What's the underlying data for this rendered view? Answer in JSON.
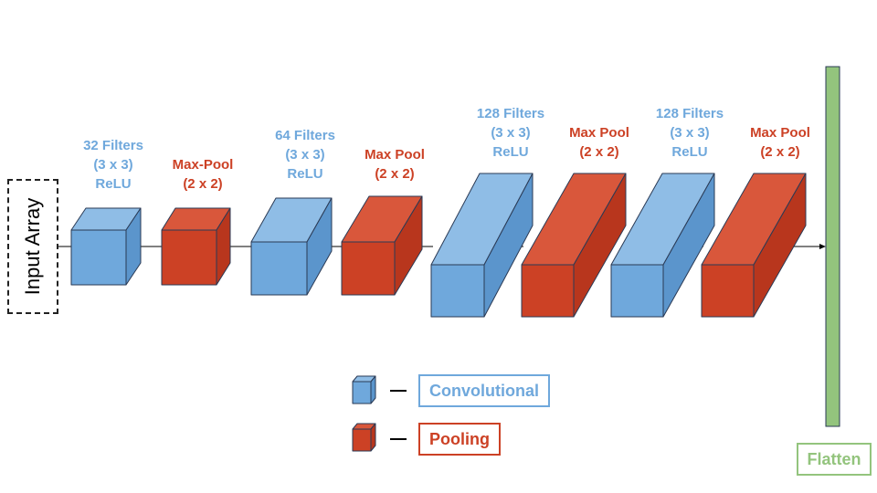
{
  "input": {
    "label": "Input Array"
  },
  "colors": {
    "conv_front": "#6fa8dc",
    "conv_top": "#8fbde6",
    "conv_side": "#5b95cc",
    "pool_front": "#cc4125",
    "pool_top": "#d9573b",
    "pool_side": "#b8361d",
    "flatten": "#93c47d",
    "stroke": "#2a3a55"
  },
  "layers": [
    {
      "type": "conv",
      "lines": [
        "32 Filters",
        "(3 x 3)",
        "ReLU"
      ]
    },
    {
      "type": "pool",
      "lines": [
        "Max-Pool",
        "(2 x 2)"
      ]
    },
    {
      "type": "conv",
      "lines": [
        "64 Filters",
        "(3 x 3)",
        "ReLU"
      ]
    },
    {
      "type": "pool",
      "lines": [
        "Max Pool",
        "(2 x 2)"
      ]
    },
    {
      "type": "conv",
      "lines": [
        "128 Filters",
        "(3 x 3)",
        "ReLU"
      ]
    },
    {
      "type": "pool",
      "lines": [
        "Max Pool",
        "(2 x 2)"
      ]
    },
    {
      "type": "conv",
      "lines": [
        "128 Filters",
        "(3 x 3)",
        "ReLU"
      ]
    },
    {
      "type": "pool",
      "lines": [
        "Max Pool",
        "(2 x 2)"
      ]
    }
  ],
  "legend": {
    "convolutional": "Convolutional",
    "pooling": "Pooling",
    "dash": "—"
  },
  "flatten": {
    "label": "Flatten"
  }
}
